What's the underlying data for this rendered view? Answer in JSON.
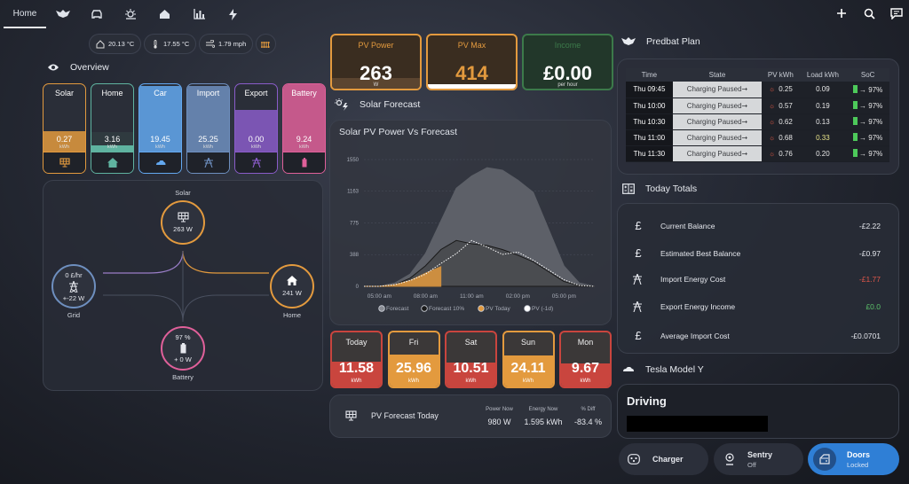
{
  "topbar": {
    "tabs": [
      {
        "label": "Home",
        "icon": "home-tab"
      },
      {
        "label": "",
        "icon": "predbat-icon"
      },
      {
        "label": "",
        "icon": "car-icon"
      },
      {
        "label": "",
        "icon": "weather-icon"
      },
      {
        "label": "",
        "icon": "house-icon"
      },
      {
        "label": "",
        "icon": "bar-chart-icon"
      },
      {
        "label": "",
        "icon": "lightning-icon"
      }
    ]
  },
  "weather": {
    "temp_out": "20.13 °C",
    "temp_in": "17.55 °C",
    "wind": "1.79 mph"
  },
  "overview": {
    "title": "Overview",
    "tiles": [
      {
        "label": "Solar",
        "value": "0.27",
        "unit": "kWh",
        "color": "#e39a3e",
        "fill": 0.3
      },
      {
        "label": "Home",
        "value": "3.16",
        "unit": "kWh",
        "color": "#5fb3a0",
        "fill": 0.28
      },
      {
        "label": "Car",
        "value": "19.45",
        "unit": "kWh",
        "color": "#63a8f0",
        "fill": 0.95
      },
      {
        "label": "Import",
        "value": "25.25",
        "unit": "kWh",
        "color": "#6e8fbf",
        "fill": 0.95
      },
      {
        "label": "Export",
        "value": "0.00",
        "unit": "kWh",
        "color": "#8a5cc9",
        "fill": 0.6
      },
      {
        "label": "Battery",
        "value": "9.24",
        "unit": "kWh",
        "color": "#e0609a",
        "fill": 0.97
      }
    ]
  },
  "flow": {
    "solar": {
      "label": "Solar",
      "value": "263 W"
    },
    "grid": {
      "label": "Grid",
      "rate": "0 £/hr",
      "value": "+-22 W"
    },
    "home": {
      "label": "Home",
      "value": "241 W"
    },
    "battery": {
      "label": "Battery",
      "soc": "97 %",
      "value": "+ 0 W"
    }
  },
  "stats": [
    {
      "title": "PV Power",
      "value": "263",
      "unit": "W",
      "color": "#e39a3e"
    },
    {
      "title": "PV Max",
      "value": "414",
      "unit": "",
      "color": "#e39a3e"
    },
    {
      "title": "Income",
      "value": "£0.00",
      "unit": "per hour",
      "color": "#3c7a4a"
    }
  ],
  "solar_forecast": {
    "title": "Solar Forecast",
    "chart_title": "Solar PV Power Vs Forecast"
  },
  "chart_data": {
    "type": "area",
    "title": "Solar PV Power Vs Forecast",
    "x_ticks": [
      "05:00 am",
      "08:00 am",
      "11:00 am",
      "02:00 pm",
      "05:00 pm"
    ],
    "y_ticks": [
      0,
      388,
      775,
      1163,
      1550
    ],
    "ylim": [
      0,
      1550
    ],
    "x": [
      4,
      5,
      6,
      7,
      8,
      9,
      10,
      11,
      12,
      13,
      14,
      15,
      16,
      17,
      18,
      19
    ],
    "series": [
      {
        "name": "Forecast",
        "values": [
          0,
          0,
          40,
          150,
          400,
          800,
          1200,
          1350,
          1450,
          1420,
          1300,
          1150,
          700,
          250,
          40,
          0
        ]
      },
      {
        "name": "Forecast 10%",
        "values": [
          0,
          0,
          20,
          100,
          250,
          450,
          560,
          520,
          500,
          450,
          380,
          300,
          180,
          60,
          10,
          0
        ]
      },
      {
        "name": "PV Today",
        "values": [
          0,
          0,
          20,
          70,
          160,
          240,
          0,
          0,
          0,
          0,
          0,
          0,
          0,
          0,
          0,
          0
        ]
      },
      {
        "name": "PV (-1d)",
        "values": [
          0,
          0,
          20,
          70,
          150,
          280,
          400,
          560,
          480,
          390,
          420,
          320,
          200,
          80,
          10,
          0
        ]
      }
    ]
  },
  "days": [
    {
      "label": "Today",
      "value": "11.58",
      "unit": "kWh",
      "color": "#c9453e",
      "fill": 0.5
    },
    {
      "label": "Fri",
      "value": "25.96",
      "unit": "kWh",
      "color": "#e39a3e",
      "fill": 1
    },
    {
      "label": "Sat",
      "value": "10.51",
      "unit": "kWh",
      "color": "#c9453e",
      "fill": 0.45
    },
    {
      "label": "Sun",
      "value": "24.11",
      "unit": "kWh",
      "color": "#e39a3e",
      "fill": 0.95
    },
    {
      "label": "Mon",
      "value": "9.67",
      "unit": "kWh",
      "color": "#c9453e",
      "fill": 0.4
    }
  ],
  "pv_today": {
    "title": "PV Forecast Today",
    "power_label": "Power Now",
    "power_value": "980 W",
    "energy_label": "Energy Now",
    "energy_value": "1.595 kWh",
    "diff_label": "% Diff",
    "diff_value": "-83.4 %"
  },
  "predbat": {
    "title": "Predbat Plan",
    "headers": [
      "Time",
      "State",
      "PV kWh",
      "Load kWh",
      "SoC"
    ],
    "rows": [
      {
        "time": "Thu 09:45",
        "state": "Charging Paused➞",
        "pv": "0.25",
        "load": "0.09",
        "soc": "→ 97%"
      },
      {
        "time": "Thu 10:00",
        "state": "Charging Paused➞",
        "pv": "0.57",
        "load": "0.19",
        "soc": "→ 97%"
      },
      {
        "time": "Thu 10:30",
        "state": "Charging Paused➞",
        "pv": "0.62",
        "load": "0.13",
        "soc": "→ 97%"
      },
      {
        "time": "Thu 11:00",
        "state": "Charging Paused➞",
        "pv": "0.68",
        "load": "0.33",
        "soc": "→ 97%"
      },
      {
        "time": "Thu 11:30",
        "state": "Charging Paused➞",
        "pv": "0.76",
        "load": "0.20",
        "soc": "→ 97%"
      }
    ]
  },
  "totals": {
    "title": "Today Totals",
    "rows": [
      {
        "label": "Current Balance",
        "value": "-£2.22",
        "color": "#e6e8ee"
      },
      {
        "label": "Estimated Best Balance",
        "value": "-£0.97",
        "color": "#e6e8ee"
      },
      {
        "label": "Import Energy Cost",
        "value": "-£1.77",
        "color": "#e0574a"
      },
      {
        "label": "Export Energy Income",
        "value": "£0.0",
        "color": "#5cc26a"
      },
      {
        "label": "Average Import Cost",
        "value": "-£0.0701",
        "color": "#e6e8ee"
      }
    ]
  },
  "tesla": {
    "title": "Tesla Model Y",
    "status": "Driving"
  },
  "buttons": {
    "charger": "Charger",
    "sentry": "Sentry",
    "sentry_state": "Off",
    "doors": "Doors",
    "doors_state": "Locked"
  }
}
